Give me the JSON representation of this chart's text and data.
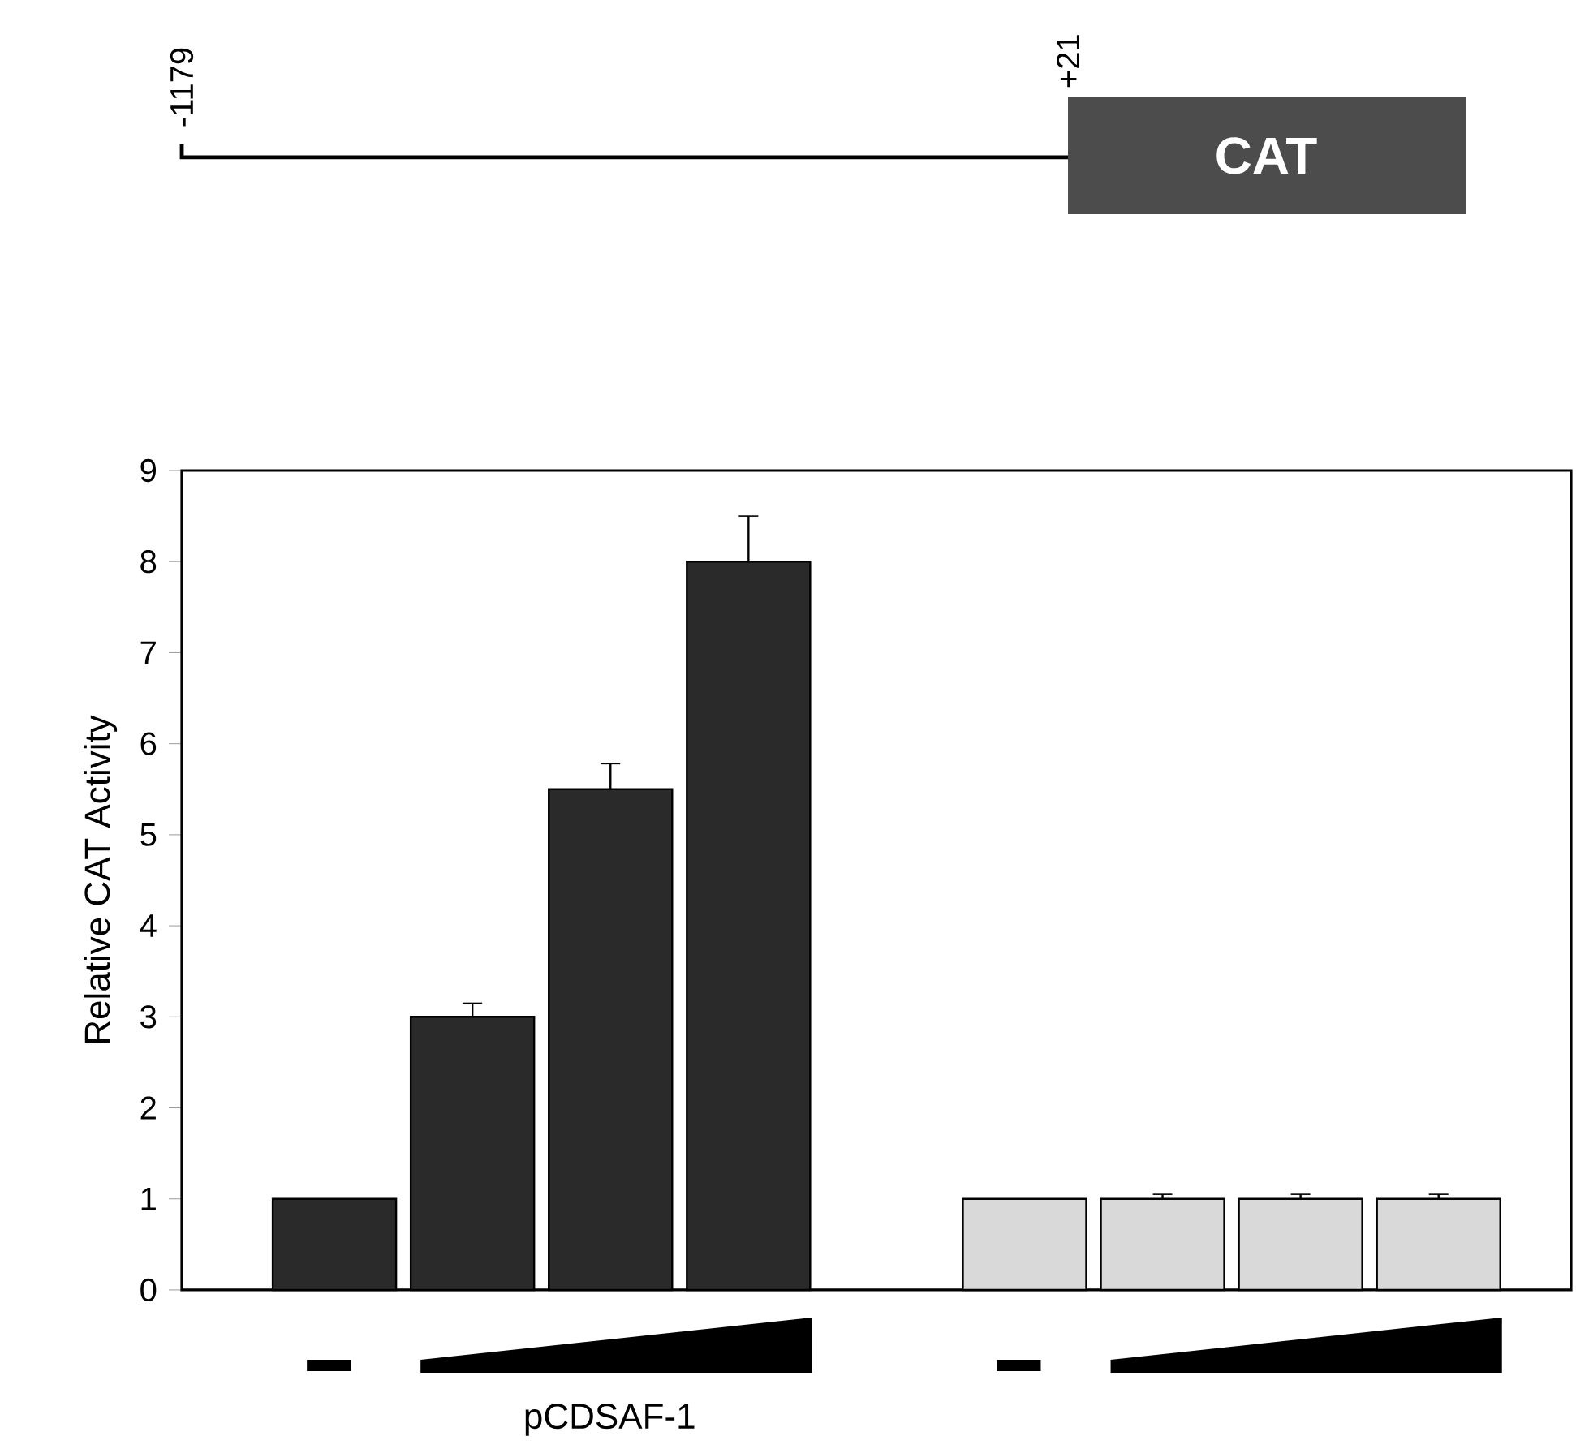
{
  "chart_data": {
    "type": "bar",
    "ylabel": "Relative CAT Activity",
    "categories": [
      null,
      null,
      null,
      null,
      null,
      null,
      null,
      null
    ],
    "values": [
      1,
      3,
      5.5,
      8,
      1,
      1,
      1,
      1
    ],
    "errors": [
      null,
      0.15,
      0.28,
      0.5,
      null,
      0.05,
      0.05,
      0.05
    ],
    "colors": [
      "#2a2a2a",
      "#2a2a2a",
      "#2a2a2a",
      "#2a2a2a",
      "#d9d9d9",
      "#d9d9d9",
      "#d9d9d9",
      "#d9d9d9"
    ],
    "ylim": [
      0,
      9
    ],
    "yticks": [
      0,
      1,
      2,
      3,
      4,
      5,
      6,
      7,
      8,
      9
    ],
    "annotations": [
      "-1179",
      "+21",
      "CAT",
      "pCDSAF-1"
    ]
  }
}
